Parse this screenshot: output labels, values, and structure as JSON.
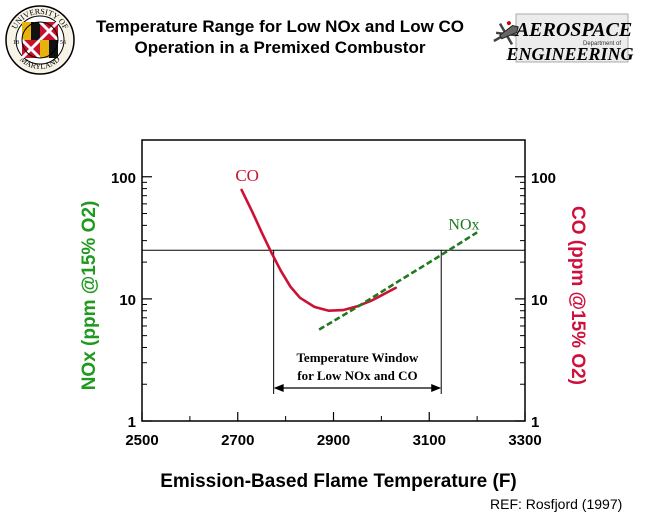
{
  "header": {
    "title_line1": "Temperature Range for Low NOx and Low CO",
    "title_line2": "Operation in a Premixed Combustor",
    "left_logo": {
      "icon": "university-of-maryland-seal-icon",
      "text_top": "UNIVERSITY OF",
      "text_bottom": "MARYLAND",
      "year_left": "18",
      "year_right": "56"
    },
    "right_logo": {
      "icon": "aerospace-engineering-logo-icon",
      "line1": "AEROSPACE",
      "line2_small": "Department of",
      "line3": "ENGINEERING"
    }
  },
  "reference": "REF: Rosfjord (1997)",
  "colors": {
    "co": "#cc1133",
    "nox": "#1f7a1f",
    "axis": "#000000",
    "nox_axis_label": "#1e9a1e",
    "co_axis_label": "#d0103c"
  },
  "chart_data": {
    "type": "line",
    "title": "",
    "xlabel": "Emission-Based Flame Temperature (F)",
    "ylabel_left": "NOx (ppm @15% O2)",
    "ylabel_right": "CO (ppm @15% O2)",
    "xlim": [
      2500,
      3300
    ],
    "ylim": [
      1,
      200
    ],
    "yscale": "log",
    "x_ticks": [
      "2500",
      "2700",
      "2900",
      "3100",
      "3300"
    ],
    "y_ticks": [
      "1",
      "10",
      "100"
    ],
    "grid": false,
    "series": [
      {
        "name": "CO",
        "style": "solid",
        "points": [
          [
            2708,
            78
          ],
          [
            2730,
            52
          ],
          [
            2750,
            35
          ],
          [
            2770,
            24
          ],
          [
            2790,
            17
          ],
          [
            2810,
            12.6
          ],
          [
            2830,
            10.2
          ],
          [
            2860,
            8.6
          ],
          [
            2890,
            8.0
          ],
          [
            2920,
            8.1
          ],
          [
            2950,
            8.7
          ],
          [
            2980,
            9.7
          ],
          [
            3010,
            11.2
          ],
          [
            3030,
            12.3
          ]
        ]
      },
      {
        "name": "NOx",
        "style": "dashed",
        "points": [
          [
            2870,
            5.6
          ],
          [
            2950,
            8.6
          ],
          [
            3030,
            13.5
          ],
          [
            3110,
            21
          ],
          [
            3200,
            35
          ]
        ]
      }
    ],
    "threshold_y": 25,
    "window": {
      "x_start": 2775,
      "x_end": 3125,
      "label_line1": "Temperature Window",
      "label_line2": "for Low NOx and CO"
    }
  }
}
